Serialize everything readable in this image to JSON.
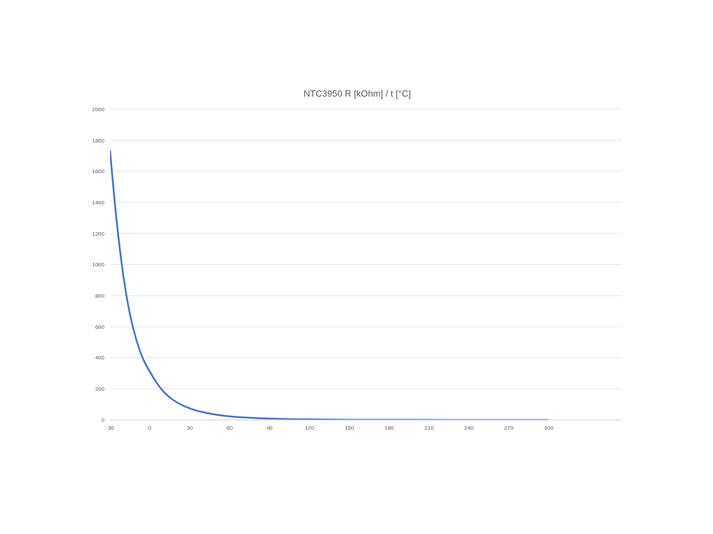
{
  "chart_data": {
    "type": "line",
    "title": "NTC3950 R [kOhm] / t [°C]",
    "x": [
      -30,
      -25,
      -20,
      -15,
      -10,
      -5,
      0,
      5,
      10,
      15,
      20,
      25,
      30,
      35,
      40,
      45,
      50,
      60,
      70,
      80,
      90,
      100,
      110,
      120,
      140,
      160,
      180,
      200,
      240,
      300
    ],
    "series": [
      {
        "color": "#4472c4",
        "values": [
          1735,
          1280,
          930,
          680,
          510,
          390,
          310,
          240,
          185,
          145,
          115,
          92,
          75,
          60,
          50,
          41,
          34,
          24,
          17,
          12,
          9,
          7,
          5,
          4,
          2,
          1,
          1,
          1,
          0,
          0
        ]
      }
    ],
    "xlim": [
      -30,
      355
    ],
    "xticks": [
      -30,
      0,
      30,
      60,
      90,
      120,
      150,
      180,
      210,
      240,
      270,
      300
    ],
    "ylim": [
      0,
      2000
    ],
    "yticks": [
      0,
      200,
      400,
      600,
      800,
      1000,
      1200,
      1400,
      1600,
      1800,
      2000
    ],
    "grid": "y",
    "legend": false,
    "marker": "none",
    "line_style": "solid"
  }
}
